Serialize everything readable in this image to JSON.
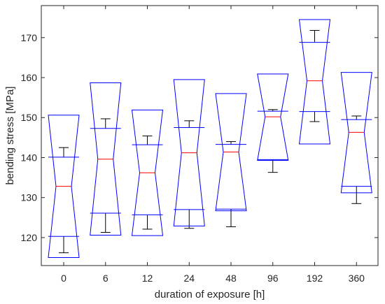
{
  "chart_data": {
    "type": "boxplot",
    "xlabel": "duration of exposure [h]",
    "ylabel": "bending stress [MPa]",
    "ylim": [
      113,
      178
    ],
    "yticks": [
      120,
      130,
      140,
      150,
      160,
      170
    ],
    "grid": false,
    "notched": true,
    "colors": {
      "box": "#0000ff",
      "median": "#ff0000",
      "whisker": "#000000",
      "axis": "#262626"
    },
    "categories": [
      "0",
      "6",
      "12",
      "24",
      "48",
      "96",
      "192",
      "360"
    ],
    "boxes": [
      {
        "category": "0",
        "whisker_low": 116.2,
        "q1": 120.3,
        "median": 132.8,
        "q3": 140.1,
        "whisker_high": 142.5,
        "notch_low": 115.0,
        "notch_high": 150.6
      },
      {
        "category": "6",
        "whisker_low": 121.3,
        "q1": 126.1,
        "median": 139.6,
        "q3": 147.3,
        "whisker_high": 149.7,
        "notch_low": 120.6,
        "notch_high": 158.7
      },
      {
        "category": "12",
        "whisker_low": 122.1,
        "q1": 125.7,
        "median": 136.2,
        "q3": 143.2,
        "whisker_high": 145.4,
        "notch_low": 120.5,
        "notch_high": 151.9
      },
      {
        "category": "24",
        "whisker_low": 122.3,
        "q1": 127.0,
        "median": 141.2,
        "q3": 147.5,
        "whisker_high": 149.2,
        "notch_low": 122.9,
        "notch_high": 159.5
      },
      {
        "category": "48",
        "whisker_low": 122.7,
        "q1": 127.1,
        "median": 141.4,
        "q3": 143.3,
        "whisker_high": 144.0,
        "notch_low": 126.7,
        "notch_high": 156.0
      },
      {
        "category": "96",
        "whisker_low": 136.3,
        "q1": 139.5,
        "median": 150.2,
        "q3": 151.6,
        "whisker_high": 152.0,
        "notch_low": 139.3,
        "notch_high": 160.9
      },
      {
        "category": "192",
        "whisker_low": 149.0,
        "q1": 151.5,
        "median": 159.2,
        "q3": 168.8,
        "whisker_high": 171.8,
        "notch_low": 143.4,
        "notch_high": 174.5
      },
      {
        "category": "360",
        "whisker_low": 128.5,
        "q1": 132.8,
        "median": 146.3,
        "q3": 149.5,
        "whisker_high": 150.4,
        "notch_low": 131.2,
        "notch_high": 161.3
      }
    ]
  }
}
